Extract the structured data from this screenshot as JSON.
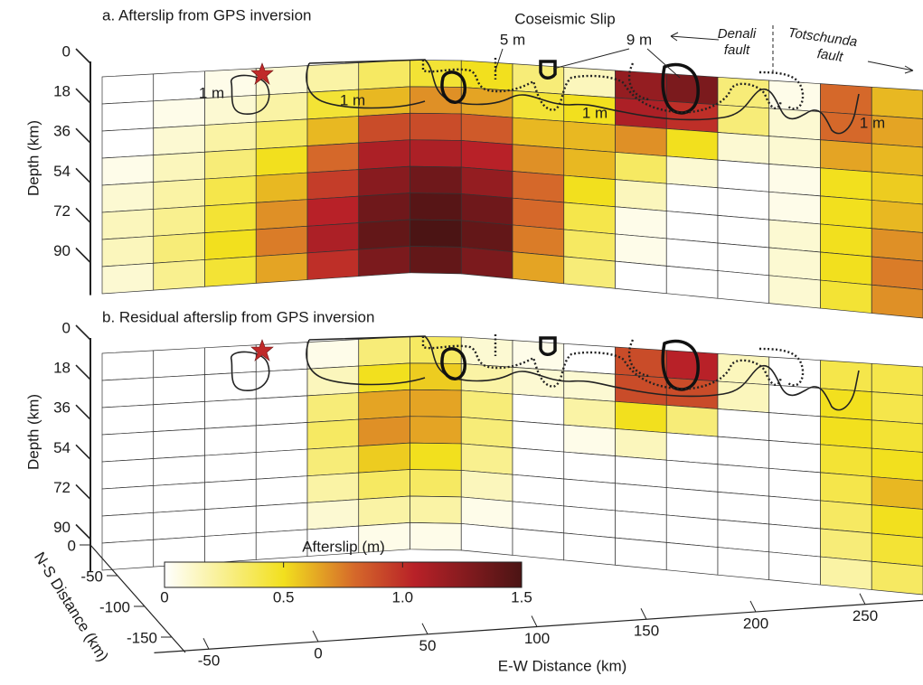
{
  "chart_data": [
    {
      "type": "heatmap",
      "title": "a. Afterslip from GPS inversion",
      "ylabel": "Depth (km)",
      "ylim": [
        0,
        108
      ],
      "yticks": [
        0,
        18,
        36,
        54,
        72,
        90
      ],
      "annotations": [
        "Coseismic Slip",
        "5 m",
        "9 m",
        "Denali",
        "fault",
        "Totschunda",
        "fault",
        "1 m",
        "1 m",
        "1 m",
        "1 m"
      ],
      "values": [
        [
          0,
          0,
          0.05,
          0.1,
          0.2,
          0.35,
          0.45,
          0.5,
          0.3,
          0.15,
          1.2,
          1.3,
          0.3,
          0.05,
          0.8,
          0.6
        ],
        [
          0,
          0.05,
          0.1,
          0.2,
          0.45,
          0.6,
          0.7,
          0.65,
          0.45,
          0.5,
          1.1,
          1.0,
          0.3,
          0.1,
          0.8,
          0.65
        ],
        [
          0,
          0.1,
          0.2,
          0.35,
          0.6,
          0.9,
          0.9,
          0.85,
          0.6,
          0.6,
          0.7,
          0.5,
          0.1,
          0.1,
          0.65,
          0.6
        ],
        [
          0.05,
          0.15,
          0.3,
          0.5,
          0.8,
          1.1,
          1.1,
          1.05,
          0.7,
          0.6,
          0.35,
          0.1,
          0,
          0.05,
          0.5,
          0.55
        ],
        [
          0.1,
          0.2,
          0.4,
          0.6,
          0.95,
          1.25,
          1.35,
          1.2,
          0.8,
          0.5,
          0.15,
          0,
          0,
          0.05,
          0.5,
          0.6
        ],
        [
          0.15,
          0.25,
          0.45,
          0.7,
          1.05,
          1.35,
          1.45,
          1.35,
          0.8,
          0.4,
          0.05,
          0,
          0,
          0.1,
          0.5,
          0.7
        ],
        [
          0.15,
          0.3,
          0.5,
          0.75,
          1.1,
          1.4,
          1.5,
          1.4,
          0.75,
          0.35,
          0.05,
          0,
          0,
          0.1,
          0.5,
          0.75
        ],
        [
          0.1,
          0.25,
          0.45,
          0.65,
          1.0,
          1.3,
          1.4,
          1.3,
          0.65,
          0.3,
          0,
          0,
          0,
          0.1,
          0.45,
          0.7
        ]
      ]
    },
    {
      "type": "heatmap",
      "title": "b. Residual afterslip from GPS inversion",
      "ylabel": "Depth (km)",
      "ylim": [
        0,
        108
      ],
      "yticks": [
        0,
        18,
        36,
        54,
        72,
        90
      ],
      "xlabel": "E-W Distance (km)",
      "xlim": [
        -75,
        285
      ],
      "xticks": [
        -50,
        0,
        50,
        100,
        150,
        200,
        250
      ],
      "zlabel": "N-S Distance (km)",
      "zlim": [
        0,
        -175
      ],
      "zticks": [
        0,
        -50,
        -100,
        -150
      ],
      "colorbar": {
        "label": "Afterslip (m)",
        "lim": [
          0,
          1.5
        ],
        "ticks": [
          0,
          0.5,
          {
            "value": 1,
            "label": "1.0"
          },
          1.5
        ],
        "colorscale": [
          [
            0,
            "#ffffff"
          ],
          [
            0.5,
            "#f2e01e"
          ],
          [
            0.8,
            "#d5682a"
          ],
          [
            1.05,
            "#b82128"
          ],
          [
            1.5,
            "#4b1414"
          ]
        ]
      },
      "values": [
        [
          0,
          0,
          0,
          0,
          0.05,
          0.3,
          0.35,
          0.1,
          0.05,
          0,
          0.9,
          1.05,
          0.15,
          0,
          0.4,
          0.4
        ],
        [
          0,
          0,
          0,
          0,
          0.15,
          0.5,
          0.55,
          0.2,
          0.1,
          0.1,
          0.9,
          0.9,
          0.15,
          0,
          0.5,
          0.4
        ],
        [
          0,
          0,
          0,
          0,
          0.3,
          0.65,
          0.65,
          0.3,
          0,
          0.2,
          0.5,
          0.3,
          0,
          0,
          0.5,
          0.45
        ],
        [
          0,
          0,
          0,
          0,
          0.35,
          0.7,
          0.65,
          0.3,
          0,
          0.05,
          0.15,
          0,
          0,
          0,
          0.45,
          0.5
        ],
        [
          0,
          0,
          0,
          0,
          0.3,
          0.55,
          0.5,
          0.25,
          0,
          0,
          0,
          0,
          0,
          0,
          0.4,
          0.6
        ],
        [
          0,
          0,
          0,
          0,
          0.2,
          0.35,
          0.35,
          0.15,
          0,
          0,
          0,
          0,
          0,
          0,
          0.35,
          0.5
        ],
        [
          0,
          0,
          0,
          0,
          0.1,
          0.2,
          0.2,
          0.05,
          0,
          0,
          0,
          0,
          0,
          0,
          0.3,
          0.45
        ],
        [
          0,
          0,
          0,
          0,
          0,
          0.05,
          0.05,
          0,
          0,
          0,
          0,
          0,
          0,
          0,
          0.2,
          0.35
        ]
      ]
    }
  ]
}
